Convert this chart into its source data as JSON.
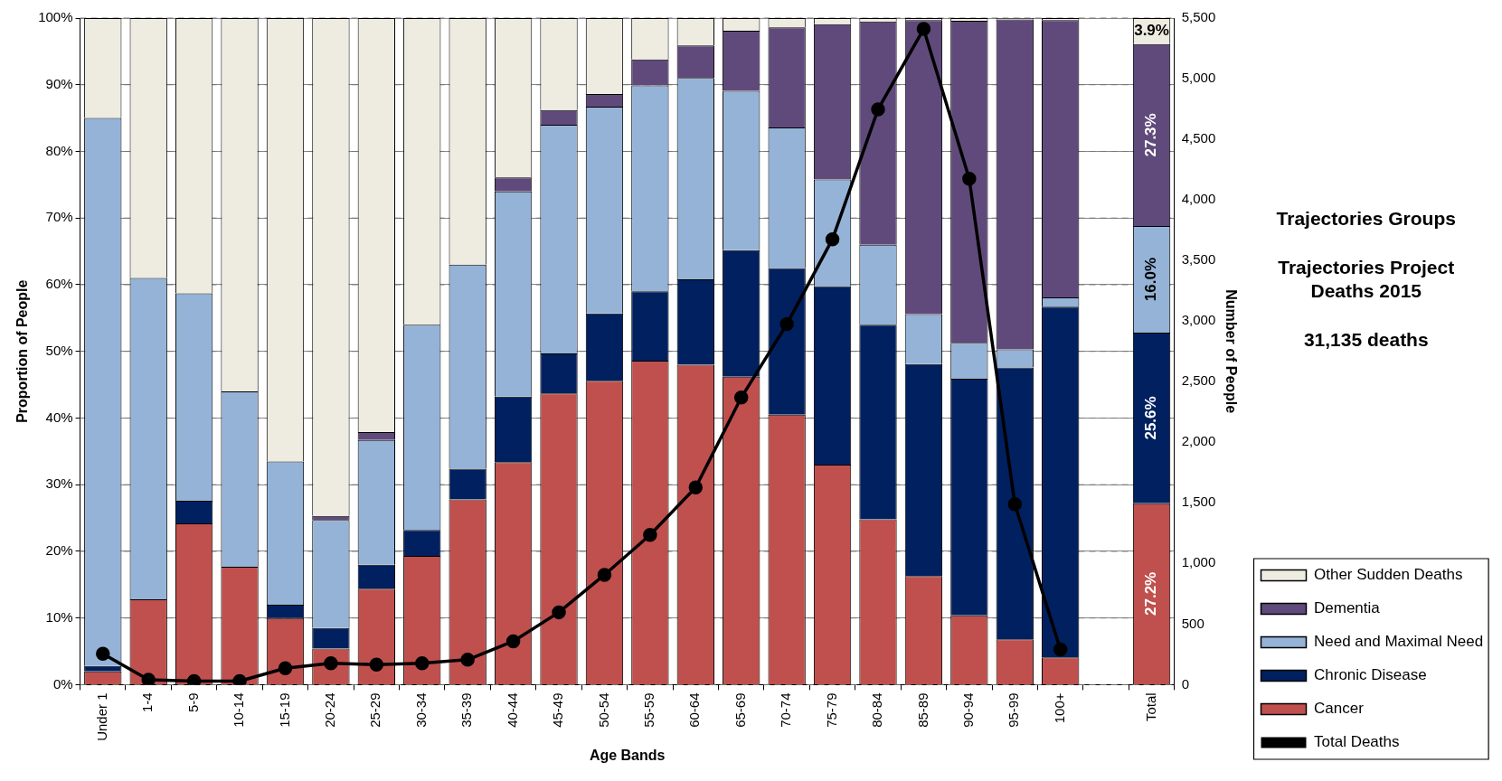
{
  "chart_data": {
    "type": "bar",
    "stacked": true,
    "xlabel": "Age Bands",
    "ylabel": "Proportion of People",
    "y2label": "Number of People",
    "categories": [
      "Under 1",
      "1-4",
      "5-9",
      "10-14",
      "15-19",
      "20-24",
      "25-29",
      "30-34",
      "35-39",
      "40-44",
      "45-49",
      "50-54",
      "55-59",
      "60-64",
      "65-69",
      "70-74",
      "75-79",
      "80-84",
      "85-89",
      "90-94",
      "95-99",
      "100+",
      null,
      "Total"
    ],
    "series": [
      {
        "name": "Cancer",
        "color": "#c0504d",
        "values": [
          2,
          12.8,
          24.2,
          17.7,
          10,
          5.4,
          14.4,
          19.3,
          27.8,
          33.4,
          43.7,
          45.6,
          48.6,
          48,
          46.2,
          40.5,
          33,
          24.8,
          16.3,
          10.4,
          6.8,
          4.1,
          null,
          27.2
        ],
        "value_labels": [
          null,
          null,
          null,
          null,
          null,
          null,
          null,
          null,
          null,
          null,
          null,
          null,
          null,
          null,
          null,
          null,
          null,
          null,
          null,
          null,
          null,
          null,
          null,
          "27.2%"
        ]
      },
      {
        "name": "Chronic Disease",
        "color": "#002060",
        "values": [
          0.8,
          0,
          3.4,
          0,
          2,
          3.1,
          3.6,
          3.9,
          4.6,
          9.8,
          6,
          10.1,
          10.4,
          12.8,
          19,
          22,
          26.8,
          29.2,
          31.8,
          35.5,
          40.8,
          52.6,
          null,
          25.6
        ],
        "value_labels": [
          null,
          null,
          null,
          null,
          null,
          null,
          null,
          null,
          null,
          null,
          null,
          null,
          null,
          null,
          null,
          null,
          null,
          null,
          null,
          null,
          null,
          null,
          null,
          "25.6%"
        ]
      },
      {
        "name": "Need and Maximal Need",
        "color": "#95b3d7",
        "values": [
          82.2,
          48.2,
          31.1,
          26.3,
          21.5,
          16.2,
          18.7,
          30.8,
          30.6,
          30.8,
          34.3,
          31,
          30.9,
          30.2,
          23.9,
          21.1,
          16,
          12,
          7.5,
          5.4,
          2.7,
          1.4,
          null,
          16.0
        ],
        "value_labels": [
          null,
          null,
          null,
          null,
          null,
          null,
          null,
          null,
          null,
          null,
          null,
          null,
          null,
          null,
          null,
          null,
          null,
          null,
          null,
          null,
          null,
          null,
          null,
          "16.0%"
        ]
      },
      {
        "name": "Dementia",
        "color": "#604a7b",
        "values": [
          0,
          0,
          0,
          0,
          0,
          0.6,
          1.2,
          0,
          0,
          2.1,
          2.2,
          1.9,
          3.9,
          4.9,
          9,
          15,
          23.3,
          33.5,
          44.1,
          48.3,
          49.5,
          41.6,
          null,
          27.3
        ],
        "value_labels": [
          null,
          null,
          null,
          null,
          null,
          null,
          null,
          null,
          null,
          null,
          null,
          null,
          null,
          null,
          null,
          null,
          null,
          null,
          null,
          null,
          null,
          null,
          null,
          "27.3%"
        ]
      },
      {
        "name": "Other Sudden Deaths",
        "color": "#eeece1",
        "values": [
          15,
          39,
          41.3,
          56,
          66.5,
          74.7,
          62.1,
          46,
          37,
          23.9,
          13.8,
          11.4,
          6.2,
          4.1,
          1.9,
          1.4,
          0.9,
          0.5,
          0.3,
          0.4,
          0.2,
          0.3,
          null,
          3.9
        ],
        "value_labels": [
          null,
          null,
          null,
          null,
          null,
          null,
          null,
          null,
          null,
          null,
          null,
          null,
          null,
          null,
          null,
          null,
          null,
          null,
          null,
          null,
          null,
          null,
          null,
          "3.9%"
        ]
      },
      {
        "name": "Total Deaths",
        "type": "line",
        "axis": "y2",
        "color": "#000000",
        "marker": "circle",
        "values": [
          255,
          41,
          29,
          29,
          136,
          177,
          165,
          177,
          206,
          358,
          597,
          906,
          1236,
          1627,
          2369,
          2975,
          3675,
          4747,
          5410,
          4174,
          1490,
          290,
          null,
          null
        ]
      }
    ],
    "ylim": [
      0,
      100
    ],
    "yticks": [
      {
        "value": 0,
        "label": "0%"
      },
      {
        "value": 10,
        "label": "10%"
      },
      {
        "value": 20,
        "label": "20%"
      },
      {
        "value": 30,
        "label": "30%"
      },
      {
        "value": 40,
        "label": "40%"
      },
      {
        "value": 50,
        "label": "50%"
      },
      {
        "value": 60,
        "label": "60%"
      },
      {
        "value": 70,
        "label": "70%"
      },
      {
        "value": 80,
        "label": "80%"
      },
      {
        "value": 90,
        "label": "90%"
      },
      {
        "value": 100,
        "label": "100%"
      }
    ],
    "y2lim": [
      0,
      5500
    ],
    "y2ticks": [
      0,
      500,
      {
        "value": 1000,
        "label": "1,000"
      },
      {
        "value": 1500,
        "label": "1,500"
      },
      {
        "value": 2000,
        "label": "2,000"
      },
      {
        "value": 2500,
        "label": "2,500"
      },
      {
        "value": 3000,
        "label": "3,000"
      },
      {
        "value": 3500,
        "label": "3,500"
      },
      {
        "value": 4000,
        "label": "4,000"
      },
      {
        "value": 4500,
        "label": "4,500"
      },
      {
        "value": 5000,
        "label": "5,000"
      },
      {
        "value": 5500,
        "label": "5,500"
      }
    ],
    "grid": "y",
    "legend": "bottom right",
    "annotations": [
      "Trajectories Groups",
      "Trajectories Project Deaths 2015",
      "31,135 deaths"
    ]
  }
}
